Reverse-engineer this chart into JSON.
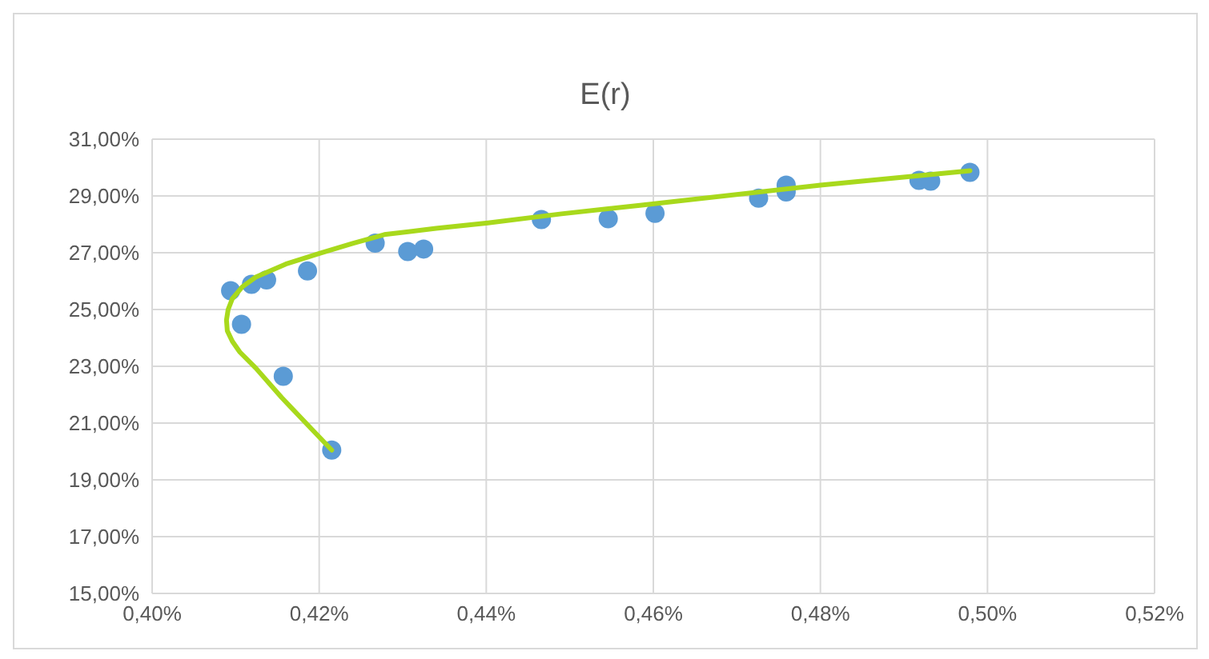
{
  "chart_data": {
    "type": "scatter",
    "title": "E(r)",
    "grid": true,
    "xlim": [
      0.4,
      0.52
    ],
    "xticks": [
      {
        "value": 0.4,
        "label": "0,40%"
      },
      {
        "value": 0.42,
        "label": "0,42%"
      },
      {
        "value": 0.44,
        "label": "0,44%"
      },
      {
        "value": 0.46,
        "label": "0,46%"
      },
      {
        "value": 0.48,
        "label": "0,48%"
      },
      {
        "value": 0.5,
        "label": "0,50%"
      },
      {
        "value": 0.52,
        "label": "0,52%"
      }
    ],
    "ylim": [
      15,
      31
    ],
    "yticks": [
      {
        "value": 15,
        "label": "15,00%"
      },
      {
        "value": 17,
        "label": "17,00%"
      },
      {
        "value": 19,
        "label": "19,00%"
      },
      {
        "value": 21,
        "label": "21,00%"
      },
      {
        "value": 23,
        "label": "23,00%"
      },
      {
        "value": 25,
        "label": "25,00%"
      },
      {
        "value": 27,
        "label": "27,00%"
      },
      {
        "value": 29,
        "label": "29,00%"
      },
      {
        "value": 31,
        "label": "31,00%"
      }
    ],
    "series": [
      {
        "marker": "circle",
        "color": "#5b9bd5",
        "x": [
          0.4094,
          0.4119,
          0.4137,
          0.4107,
          0.4157,
          0.4215,
          0.4186,
          0.4267,
          0.4306,
          0.4325,
          0.4466,
          0.4546,
          0.4602,
          0.4726,
          0.4759,
          0.4759,
          0.4918,
          0.4932,
          0.4979
        ],
        "values": [
          25.66,
          25.89,
          26.04,
          24.48,
          22.65,
          20.05,
          26.36,
          27.34,
          27.04,
          27.13,
          28.17,
          28.2,
          28.39,
          28.92,
          29.38,
          29.14,
          29.55,
          29.52,
          29.83
        ]
      },
      {
        "type": "line",
        "marker": "none",
        "color": "#a8d91c",
        "x": [
          0.4215,
          0.4188,
          0.4155,
          0.4124,
          0.4105,
          0.4096,
          0.409,
          0.4089,
          0.4091,
          0.4096,
          0.4108,
          0.4124,
          0.416,
          0.4201,
          0.424,
          0.4278,
          0.434,
          0.4402,
          0.449,
          0.4584,
          0.48,
          0.4979
        ],
        "values": [
          20.05,
          20.88,
          21.9,
          22.94,
          23.5,
          23.88,
          24.25,
          24.63,
          25.0,
          25.38,
          25.8,
          26.14,
          26.6,
          26.98,
          27.33,
          27.64,
          27.86,
          28.05,
          28.37,
          28.67,
          29.38,
          29.89
        ]
      }
    ]
  }
}
